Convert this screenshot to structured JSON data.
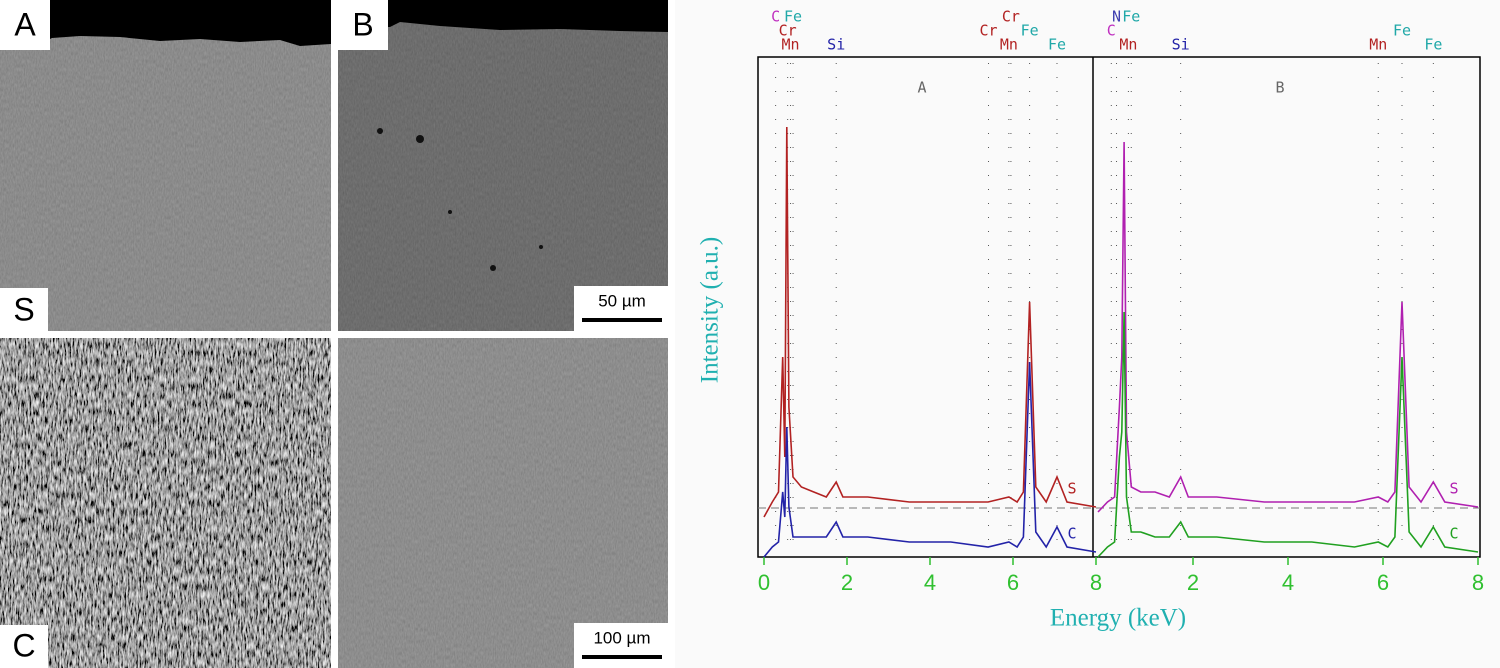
{
  "sem_images": {
    "panels": [
      {
        "label": "A"
      },
      {
        "label": "B",
        "scale_bar": "50 µm"
      },
      {
        "label": "C"
      },
      {
        "scale_bar": "100 µm"
      }
    ],
    "row_label": "S"
  },
  "chart_data": [
    {
      "type": "line",
      "title": "A",
      "ylabel": "Intensity (a.u.)",
      "xlabel": "Energy (keV)",
      "xlim": [
        0,
        8
      ],
      "xticks": [
        0,
        2,
        4,
        6,
        8
      ],
      "ylim": [
        0,
        100
      ],
      "x": [
        0,
        0.2,
        0.35,
        0.45,
        0.5,
        0.55,
        0.6,
        0.7,
        0.9,
        1.2,
        1.5,
        1.74,
        1.9,
        2.5,
        3.5,
        4.5,
        5.4,
        5.9,
        6.1,
        6.25,
        6.4,
        6.55,
        6.8,
        7.06,
        7.3,
        8
      ],
      "series": [
        {
          "name": "S",
          "color": "#b22222",
          "values": [
            8,
            11,
            13,
            40,
            20,
            86,
            30,
            16,
            14,
            13,
            12,
            15,
            12,
            12,
            11,
            11,
            11,
            12,
            11,
            13,
            51,
            14,
            11,
            16,
            11,
            10
          ]
        },
        {
          "name": "C",
          "color": "#2323a8",
          "values": [
            0,
            2,
            3,
            13,
            8,
            26,
            10,
            4,
            4,
            4,
            4,
            7,
            4,
            4,
            3,
            3,
            2,
            3,
            2,
            4,
            39,
            5,
            2,
            6,
            2,
            1
          ]
        }
      ],
      "peak_labels": [
        [
          {
            "text": "C",
            "x": 0.28,
            "color": "#c030c0"
          },
          {
            "text": "Fe",
            "x": 0.7,
            "color": "#20a8a8"
          },
          {
            "text": "Cr",
            "x": 5.95,
            "color": "#b22222"
          }
        ],
        [
          {
            "text": "Cr",
            "x": 0.57,
            "color": "#b22222"
          },
          {
            "text": "Cr",
            "x": 5.41,
            "color": "#b22222"
          },
          {
            "text": "Fe",
            "x": 6.4,
            "color": "#20a8a8"
          }
        ],
        [
          {
            "text": "Mn",
            "x": 0.64,
            "color": "#b22222"
          },
          {
            "text": "Si",
            "x": 1.74,
            "color": "#2323a8"
          },
          {
            "text": "Mn",
            "x": 5.9,
            "color": "#b22222"
          },
          {
            "text": "Fe",
            "x": 7.06,
            "color": "#20a8a8"
          }
        ]
      ]
    },
    {
      "type": "line",
      "title": "B",
      "xlim": [
        0,
        8
      ],
      "xticks": [
        2,
        4,
        6,
        8
      ],
      "ylim": [
        0,
        100
      ],
      "x": [
        0,
        0.2,
        0.35,
        0.45,
        0.5,
        0.55,
        0.6,
        0.7,
        0.9,
        1.2,
        1.5,
        1.74,
        1.9,
        2.5,
        3.5,
        4.5,
        5.4,
        5.9,
        6.1,
        6.25,
        6.4,
        6.55,
        6.8,
        7.06,
        7.3,
        8
      ],
      "series": [
        {
          "name": "S",
          "color": "#b020b0",
          "values": [
            9,
            11,
            12,
            30,
            40,
            83,
            25,
            14,
            13,
            13,
            12,
            16,
            12,
            12,
            11,
            11,
            11,
            12,
            11,
            13,
            51,
            14,
            11,
            15,
            11,
            10
          ]
        },
        {
          "name": "C",
          "color": "#20a020",
          "values": [
            0,
            2,
            3,
            20,
            25,
            49,
            12,
            5,
            5,
            4,
            4,
            7,
            4,
            4,
            3,
            3,
            2,
            3,
            2,
            4,
            40,
            5,
            2,
            6,
            2,
            1
          ]
        }
      ],
      "peak_labels": [
        [
          {
            "text": "N",
            "x": 0.39,
            "color": "#4040b0"
          },
          {
            "text": "Fe",
            "x": 0.7,
            "color": "#20a8a8"
          }
        ],
        [
          {
            "text": "C",
            "x": 0.28,
            "color": "#c030c0"
          },
          {
            "text": "Fe",
            "x": 6.4,
            "color": "#20a8a8"
          }
        ],
        [
          {
            "text": "Mn",
            "x": 0.64,
            "color": "#b22222"
          },
          {
            "text": "Si",
            "x": 1.74,
            "color": "#2323a8"
          },
          {
            "text": "Mn",
            "x": 5.9,
            "color": "#b22222"
          },
          {
            "text": "Fe",
            "x": 7.06,
            "color": "#20a8a8"
          }
        ]
      ]
    }
  ]
}
